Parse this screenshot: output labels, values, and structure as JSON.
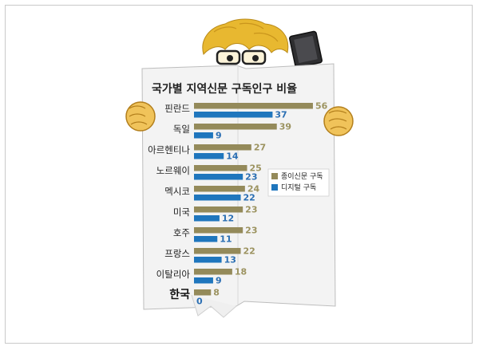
{
  "colors": {
    "paper": "#948a5a",
    "digital": "#1f76bd",
    "paper_label": "#9c9360",
    "digital_label": "#2b6fb3"
  },
  "chart_data": {
    "type": "bar",
    "title": "국가별 지역신문 구독인구 비율",
    "categories": [
      "핀란드",
      "독일",
      "아르헨티나",
      "노르웨이",
      "멕시코",
      "미국",
      "호주",
      "프랑스",
      "이탈리아",
      "한국"
    ],
    "series": [
      {
        "name": "종이신문 구독",
        "values": [
          56,
          39,
          27,
          25,
          24,
          23,
          23,
          22,
          18,
          8
        ]
      },
      {
        "name": "디지털 구독",
        "values": [
          37,
          9,
          14,
          23,
          22,
          12,
          11,
          13,
          9,
          0
        ]
      }
    ],
    "orientation": "horizontal",
    "legend_position": "right",
    "grid": false
  }
}
